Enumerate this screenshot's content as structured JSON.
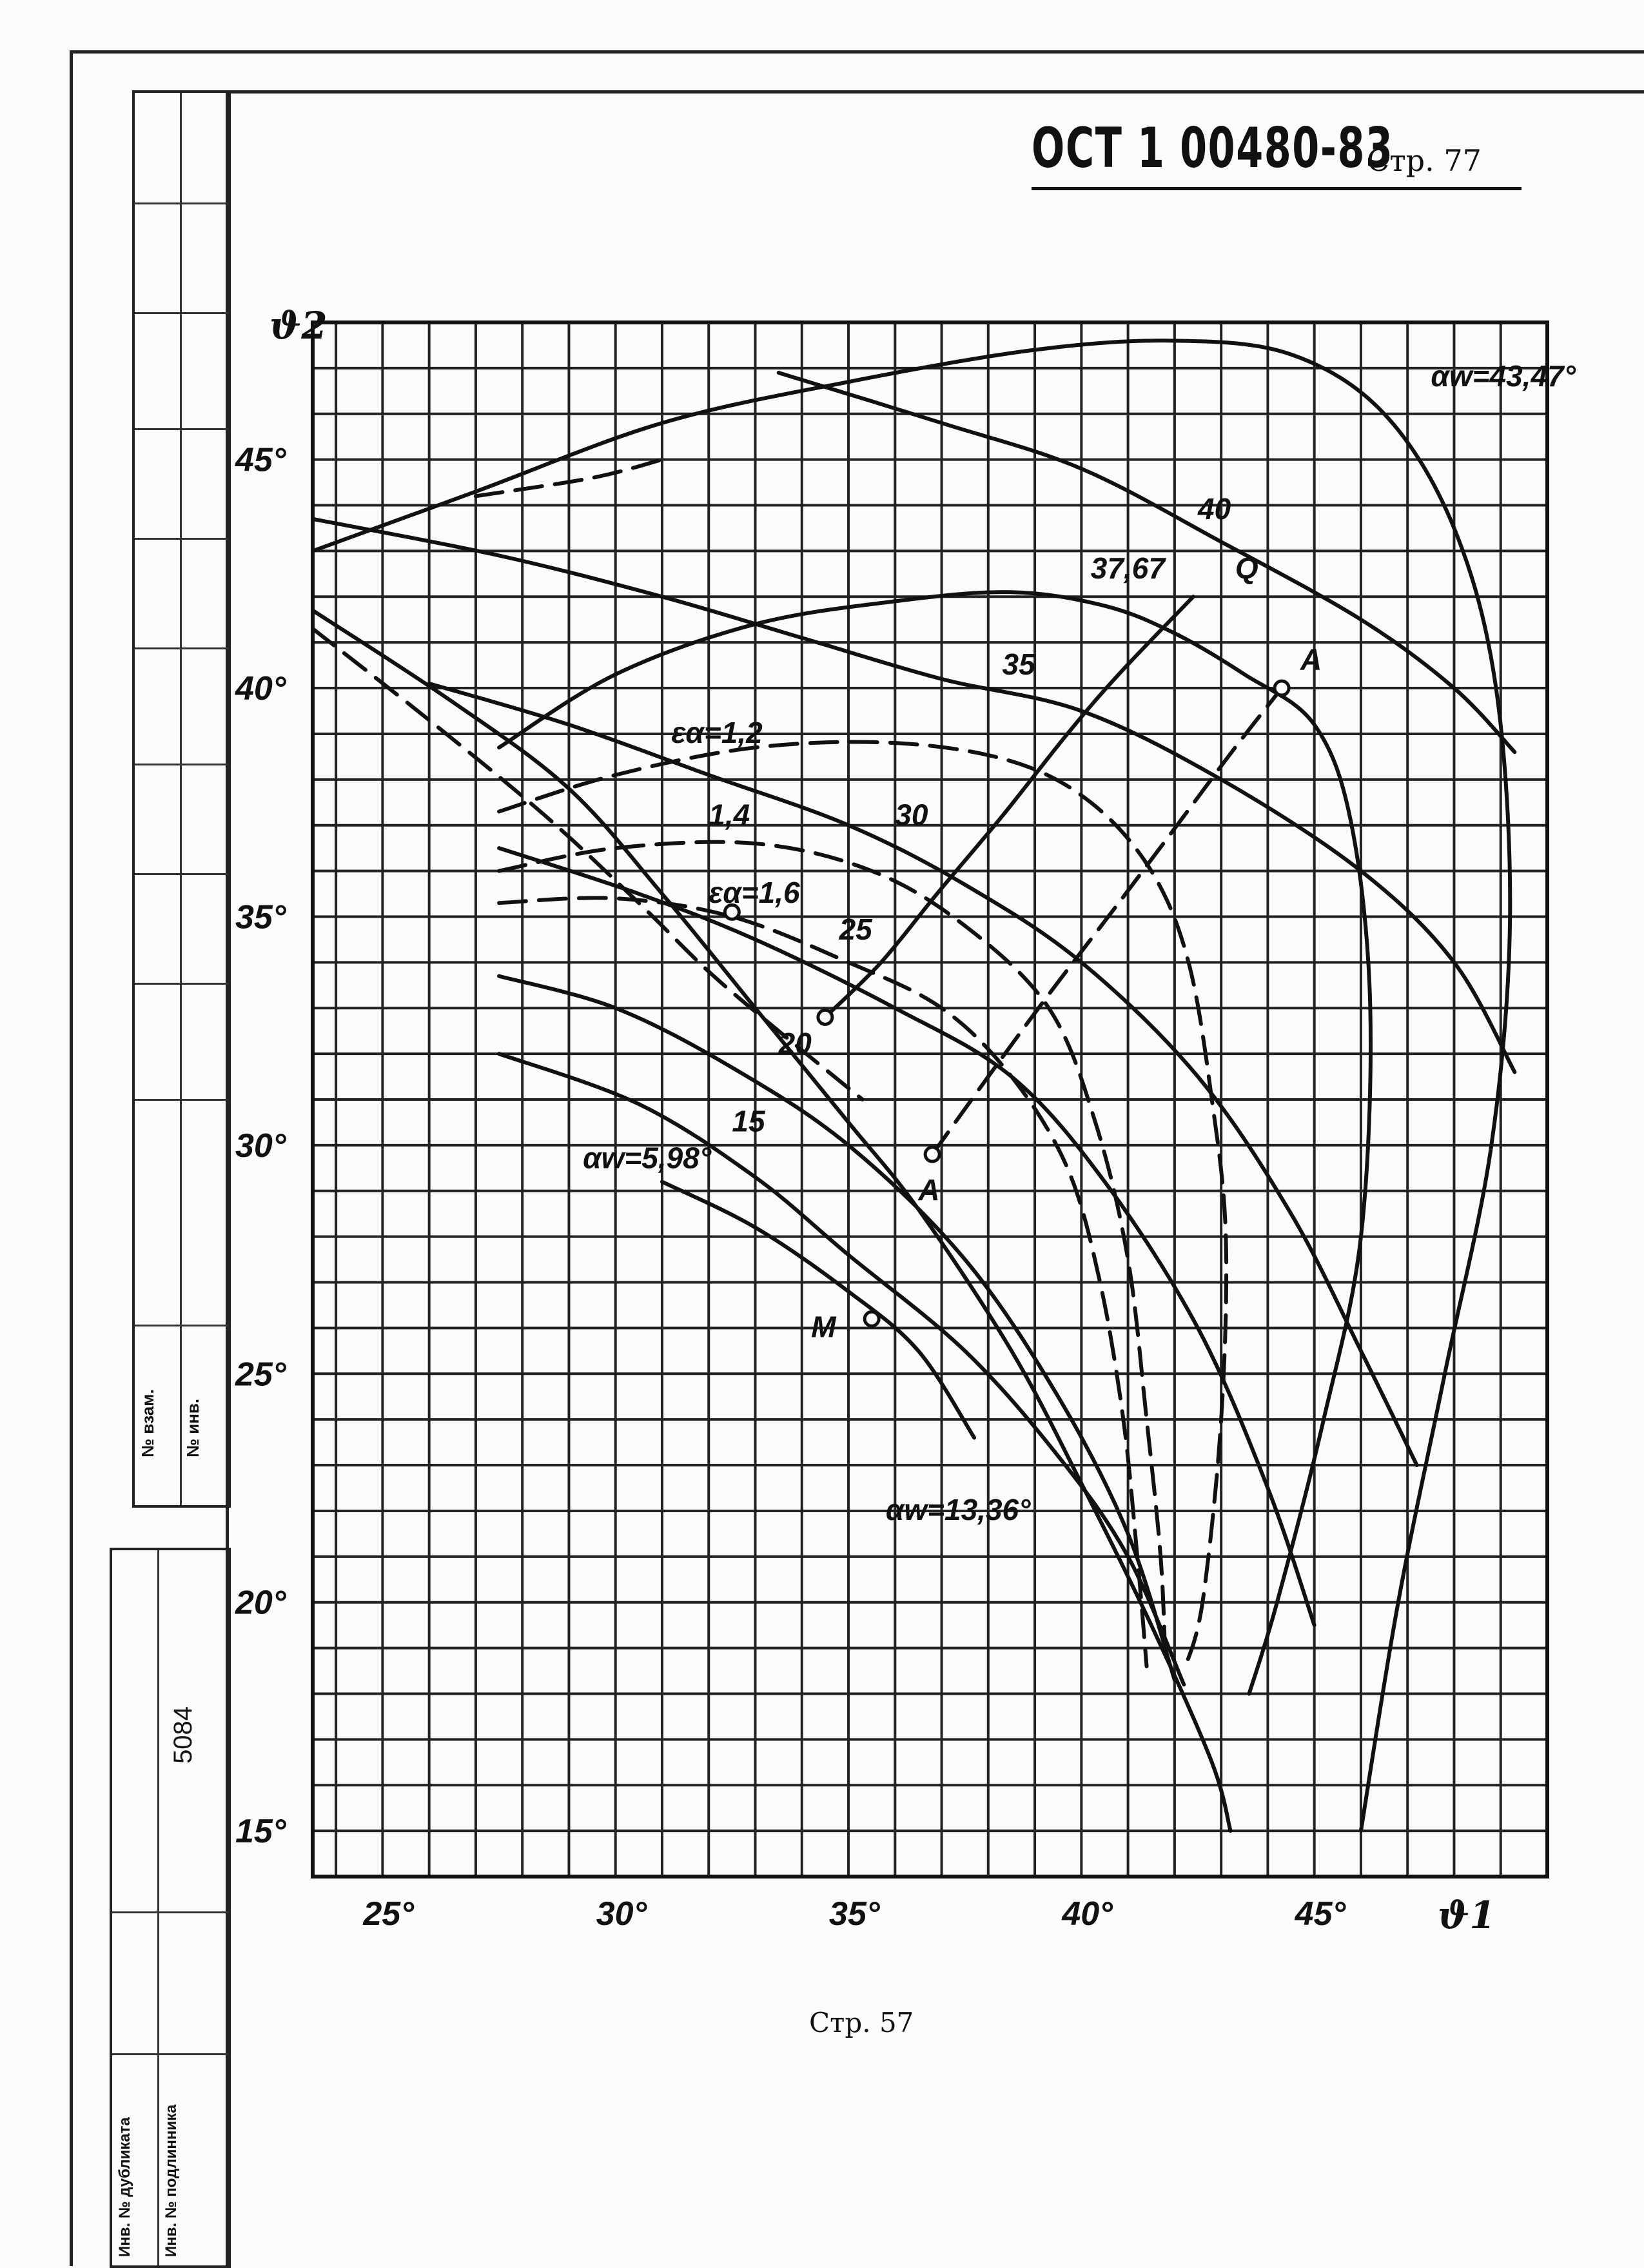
{
  "header": {
    "doc_code": "ОСТ 1 00480-83",
    "page_label": "Стр. 77"
  },
  "footer": {
    "page_label": "Стр. 57"
  },
  "side_stamp": {
    "inv_dup": "№ взам.",
    "inv_sub": "№ инв.",
    "archive_number": "5084",
    "inv_dup_label": "Инв. № дубликата",
    "inv_orig_label": "Инв. № подлинника"
  },
  "chart_data": {
    "type": "line",
    "xlabel": "ϑ1",
    "ylabel": "ϑ2",
    "xlim": [
      23.5,
      50
    ],
    "ylim": [
      14,
      48
    ],
    "x_ticks": [
      "25°",
      "30°",
      "35°",
      "40°",
      "45°"
    ],
    "y_ticks": [
      "15°",
      "20°",
      "25°",
      "30°",
      "35°",
      "40°",
      "45°"
    ],
    "grid": true,
    "series": [
      {
        "name": "αw=43,47°",
        "style": "solid",
        "points": [
          [
            23.5,
            43.0
          ],
          [
            27,
            44.3
          ],
          [
            31,
            45.8
          ],
          [
            35,
            46.7
          ],
          [
            39,
            47.4
          ],
          [
            42,
            47.6
          ],
          [
            44.5,
            47.3
          ],
          [
            46.5,
            46.0
          ],
          [
            48,
            43.5
          ],
          [
            48.9,
            40
          ],
          [
            49.2,
            35
          ],
          [
            48.8,
            30
          ],
          [
            47.8,
            25
          ],
          [
            46.8,
            20
          ],
          [
            46,
            15
          ]
        ]
      },
      {
        "name": "40",
        "style": "solid",
        "points": [
          [
            33.5,
            46.9
          ],
          [
            37,
            45.8
          ],
          [
            40,
            44.8
          ],
          [
            43,
            43.2
          ],
          [
            46,
            41.5
          ],
          [
            48,
            40
          ],
          [
            49.3,
            38.6
          ]
        ]
      },
      {
        "name": "37,67",
        "style": "solid",
        "points": [
          [
            27.5,
            38.7
          ],
          [
            30,
            40.3
          ],
          [
            33,
            41.4
          ],
          [
            36,
            41.9
          ],
          [
            38.5,
            42.1
          ],
          [
            40.5,
            41.8
          ],
          [
            42,
            41.2
          ],
          [
            43.5,
            40.3
          ],
          [
            45,
            39.2
          ],
          [
            45.8,
            37
          ],
          [
            46.2,
            33
          ],
          [
            46.0,
            28
          ],
          [
            45.2,
            24
          ],
          [
            44.2,
            20
          ],
          [
            43.6,
            18
          ]
        ]
      },
      {
        "name": "35",
        "style": "solid",
        "points": [
          [
            23.5,
            43.7
          ],
          [
            27.5,
            42.9
          ],
          [
            31,
            42.0
          ],
          [
            34,
            41.1
          ],
          [
            37,
            40.2
          ],
          [
            40,
            39.5
          ],
          [
            43,
            38.0
          ],
          [
            46,
            36
          ],
          [
            48,
            34
          ],
          [
            49.3,
            31.6
          ]
        ]
      },
      {
        "name": "30",
        "style": "solid",
        "points": [
          [
            26,
            40.1
          ],
          [
            29,
            39.2
          ],
          [
            32,
            38.1
          ],
          [
            35,
            37.0
          ],
          [
            37.5,
            35.7
          ],
          [
            40,
            34.0
          ],
          [
            42.5,
            31.5
          ],
          [
            44.5,
            28.5
          ],
          [
            46,
            25.5
          ],
          [
            47.2,
            23
          ]
        ]
      },
      {
        "name": "25",
        "style": "solid",
        "points": [
          [
            27.5,
            36.5
          ],
          [
            30.5,
            35.5
          ],
          [
            33,
            34.5
          ],
          [
            36,
            33.0
          ],
          [
            38.5,
            31.5
          ],
          [
            40.5,
            29.2
          ],
          [
            42.5,
            26.0
          ],
          [
            44,
            22.5
          ],
          [
            45,
            19.5
          ]
        ]
      },
      {
        "name": "20",
        "style": "solid",
        "points": [
          [
            27.5,
            33.7
          ],
          [
            30,
            33.0
          ],
          [
            32.5,
            31.7
          ],
          [
            35,
            30.0
          ],
          [
            37.5,
            27.5
          ],
          [
            39.5,
            24.5
          ],
          [
            41,
            21.5
          ],
          [
            42,
            18.3
          ]
        ]
      },
      {
        "name": "15",
        "style": "solid",
        "points": [
          [
            27.5,
            32.0
          ],
          [
            30.5,
            30.9
          ],
          [
            33,
            29.3
          ],
          [
            35,
            27.6
          ],
          [
            37.5,
            25.5
          ],
          [
            39.5,
            23.2
          ],
          [
            41,
            21.0
          ],
          [
            42.2,
            18.2
          ]
        ]
      },
      {
        "name": "αw=5,98°",
        "style": "solid",
        "points": [
          [
            31,
            29.2
          ],
          [
            33,
            28.2
          ],
          [
            35,
            26.8
          ],
          [
            36.5,
            25.5
          ],
          [
            37.7,
            23.6
          ]
        ]
      },
      {
        "name": "αw=13,36°",
        "style": "solid",
        "points": [
          [
            23.5,
            41.7
          ],
          [
            26.5,
            39.7
          ],
          [
            29,
            37.8
          ],
          [
            31,
            35.5
          ],
          [
            33,
            33.0
          ],
          [
            35,
            30.5
          ],
          [
            36.5,
            28.6
          ],
          [
            38.5,
            25.5
          ],
          [
            40,
            22.6
          ],
          [
            41.5,
            19.5
          ],
          [
            42.8,
            16.5
          ],
          [
            43.2,
            15
          ]
        ]
      },
      {
        "name": "εα=1,2",
        "style": "dashed",
        "points": [
          [
            27.5,
            37.3
          ],
          [
            30,
            38.1
          ],
          [
            33,
            38.7
          ],
          [
            36,
            38.8
          ],
          [
            38.5,
            38.4
          ],
          [
            40.2,
            37.5
          ],
          [
            41.5,
            36
          ],
          [
            42.3,
            34
          ],
          [
            42.8,
            31
          ],
          [
            43.1,
            28
          ],
          [
            43,
            24
          ],
          [
            42.6,
            20
          ],
          [
            42.2,
            18.5
          ]
        ]
      },
      {
        "name": "1,4",
        "style": "dashed",
        "points": [
          [
            27.5,
            36.0
          ],
          [
            30,
            36.5
          ],
          [
            33,
            36.6
          ],
          [
            35.5,
            36.0
          ],
          [
            37.5,
            34.8
          ],
          [
            39.3,
            33.0
          ],
          [
            40.3,
            30.5
          ],
          [
            41,
            27.5
          ],
          [
            41.4,
            24
          ],
          [
            41.7,
            21
          ],
          [
            41.8,
            18.8
          ]
        ]
      },
      {
        "name": "εα=1,6",
        "style": "dashed",
        "points": [
          [
            27.5,
            35.3
          ],
          [
            30,
            35.4
          ],
          [
            32.5,
            35.0
          ],
          [
            35,
            34.0
          ],
          [
            37,
            33.0
          ],
          [
            38.5,
            31.5
          ],
          [
            39.7,
            29.5
          ],
          [
            40.4,
            27
          ],
          [
            40.9,
            24
          ],
          [
            41.2,
            21
          ],
          [
            41.4,
            18.6
          ]
        ]
      },
      {
        "name": "",
        "style": "dashed",
        "points": [
          [
            23.5,
            41.3
          ],
          [
            26,
            39.3
          ],
          [
            28.5,
            37.2
          ],
          [
            30.5,
            35.3
          ],
          [
            32,
            33.8
          ],
          [
            33.5,
            32.5
          ],
          [
            35.3,
            31.0
          ]
        ]
      },
      {
        "name": "",
        "style": "dashed",
        "points": [
          [
            27,
            44.2
          ],
          [
            29.5,
            44.6
          ],
          [
            31,
            45.0
          ]
        ]
      },
      {
        "name": "Q–A",
        "style": "solid",
        "points": [
          [
            34.5,
            32.8
          ],
          [
            35.7,
            34
          ],
          [
            36.9,
            35.5
          ],
          [
            38.3,
            37.2
          ],
          [
            39.7,
            39
          ],
          [
            40.8,
            40.3
          ],
          [
            42.4,
            42
          ]
        ]
      },
      {
        "name": "A–A",
        "style": "dashed",
        "points": [
          [
            36.8,
            29.8
          ],
          [
            38,
            31.5
          ],
          [
            39.3,
            33.3
          ],
          [
            40.8,
            35.3
          ],
          [
            42.2,
            37.2
          ],
          [
            43.3,
            38.7
          ],
          [
            44.3,
            40.0
          ]
        ]
      }
    ],
    "annotations": [
      {
        "text": "αw=43,47°",
        "x": 47.5,
        "y": 46.6
      },
      {
        "text": "40",
        "x": 42.5,
        "y": 43.7
      },
      {
        "text": "37,67",
        "x": 40.2,
        "y": 42.4
      },
      {
        "text": "Q",
        "x": 43.3,
        "y": 42.4
      },
      {
        "text": "A",
        "x": 44.7,
        "y": 40.4
      },
      {
        "text": "35",
        "x": 38.3,
        "y": 40.3
      },
      {
        "text": "εα=1,2",
        "x": 31.2,
        "y": 38.8
      },
      {
        "text": "1,4",
        "x": 32,
        "y": 37.0
      },
      {
        "text": "30",
        "x": 36,
        "y": 37.0
      },
      {
        "text": "εα=1,6",
        "x": 32,
        "y": 35.3
      },
      {
        "text": "25",
        "x": 34.8,
        "y": 34.5
      },
      {
        "text": "20",
        "x": 33.5,
        "y": 32.0
      },
      {
        "text": "15",
        "x": 32.5,
        "y": 30.3
      },
      {
        "text": "αw=5,98°",
        "x": 29.3,
        "y": 29.5
      },
      {
        "text": "A",
        "x": 36.5,
        "y": 28.8
      },
      {
        "text": "M",
        "x": 34.2,
        "y": 25.8
      },
      {
        "text": "αw=13,36°",
        "x": 35.8,
        "y": 21.8
      }
    ],
    "points": [
      {
        "label": "M",
        "x": 35.5,
        "y": 26.2
      },
      {
        "label": "A",
        "x": 36.8,
        "y": 29.8
      },
      {
        "label": "A",
        "x": 44.3,
        "y": 40.0
      },
      {
        "label": "",
        "x": 34.5,
        "y": 32.8
      },
      {
        "label": "",
        "x": 32.5,
        "y": 35.1
      }
    ]
  }
}
